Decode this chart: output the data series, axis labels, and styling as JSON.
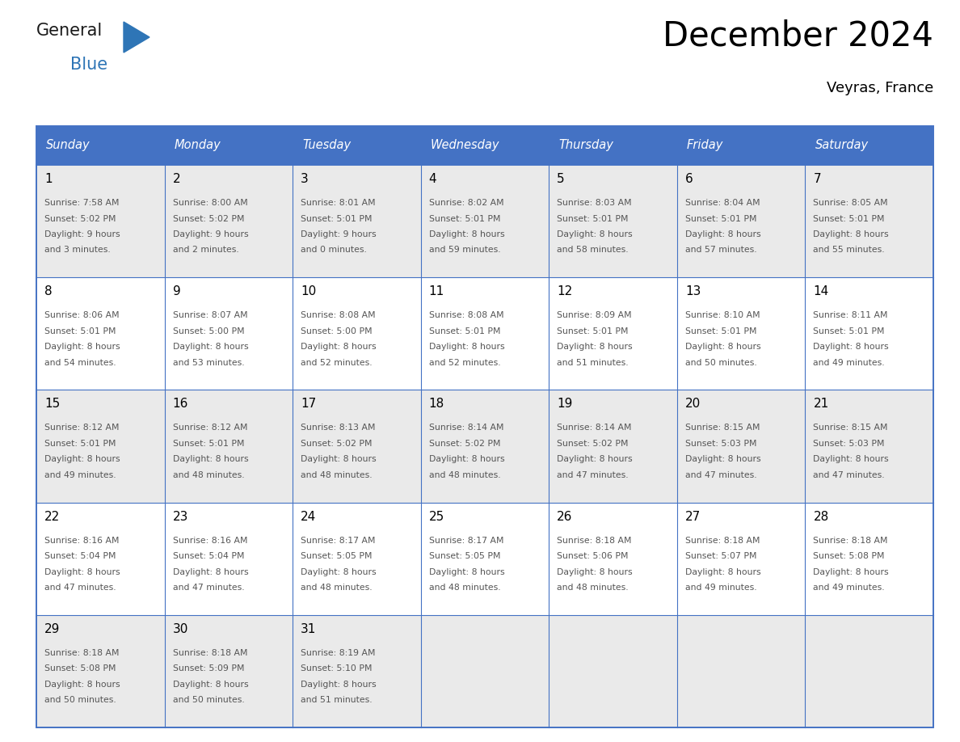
{
  "title": "December 2024",
  "subtitle": "Veyras, France",
  "header_color": "#4472C4",
  "header_text_color": "#FFFFFF",
  "day_names": [
    "Sunday",
    "Monday",
    "Tuesday",
    "Wednesday",
    "Thursday",
    "Friday",
    "Saturday"
  ],
  "cell_bg_even": "#EAEAEA",
  "cell_bg_odd": "#FFFFFF",
  "border_color": "#4472C4",
  "day_number_color": "#000000",
  "text_color": "#555555",
  "logo_general_color": "#1a1a1a",
  "logo_blue_color": "#2E75B6",
  "weeks": [
    {
      "days": [
        {
          "date": 1,
          "sunrise": "7:58 AM",
          "sunset": "5:02 PM",
          "daylight_line1": "Daylight: 9 hours",
          "daylight_line2": "and 3 minutes."
        },
        {
          "date": 2,
          "sunrise": "8:00 AM",
          "sunset": "5:02 PM",
          "daylight_line1": "Daylight: 9 hours",
          "daylight_line2": "and 2 minutes."
        },
        {
          "date": 3,
          "sunrise": "8:01 AM",
          "sunset": "5:01 PM",
          "daylight_line1": "Daylight: 9 hours",
          "daylight_line2": "and 0 minutes."
        },
        {
          "date": 4,
          "sunrise": "8:02 AM",
          "sunset": "5:01 PM",
          "daylight_line1": "Daylight: 8 hours",
          "daylight_line2": "and 59 minutes."
        },
        {
          "date": 5,
          "sunrise": "8:03 AM",
          "sunset": "5:01 PM",
          "daylight_line1": "Daylight: 8 hours",
          "daylight_line2": "and 58 minutes."
        },
        {
          "date": 6,
          "sunrise": "8:04 AM",
          "sunset": "5:01 PM",
          "daylight_line1": "Daylight: 8 hours",
          "daylight_line2": "and 57 minutes."
        },
        {
          "date": 7,
          "sunrise": "8:05 AM",
          "sunset": "5:01 PM",
          "daylight_line1": "Daylight: 8 hours",
          "daylight_line2": "and 55 minutes."
        }
      ]
    },
    {
      "days": [
        {
          "date": 8,
          "sunrise": "8:06 AM",
          "sunset": "5:01 PM",
          "daylight_line1": "Daylight: 8 hours",
          "daylight_line2": "and 54 minutes."
        },
        {
          "date": 9,
          "sunrise": "8:07 AM",
          "sunset": "5:00 PM",
          "daylight_line1": "Daylight: 8 hours",
          "daylight_line2": "and 53 minutes."
        },
        {
          "date": 10,
          "sunrise": "8:08 AM",
          "sunset": "5:00 PM",
          "daylight_line1": "Daylight: 8 hours",
          "daylight_line2": "and 52 minutes."
        },
        {
          "date": 11,
          "sunrise": "8:08 AM",
          "sunset": "5:01 PM",
          "daylight_line1": "Daylight: 8 hours",
          "daylight_line2": "and 52 minutes."
        },
        {
          "date": 12,
          "sunrise": "8:09 AM",
          "sunset": "5:01 PM",
          "daylight_line1": "Daylight: 8 hours",
          "daylight_line2": "and 51 minutes."
        },
        {
          "date": 13,
          "sunrise": "8:10 AM",
          "sunset": "5:01 PM",
          "daylight_line1": "Daylight: 8 hours",
          "daylight_line2": "and 50 minutes."
        },
        {
          "date": 14,
          "sunrise": "8:11 AM",
          "sunset": "5:01 PM",
          "daylight_line1": "Daylight: 8 hours",
          "daylight_line2": "and 49 minutes."
        }
      ]
    },
    {
      "days": [
        {
          "date": 15,
          "sunrise": "8:12 AM",
          "sunset": "5:01 PM",
          "daylight_line1": "Daylight: 8 hours",
          "daylight_line2": "and 49 minutes."
        },
        {
          "date": 16,
          "sunrise": "8:12 AM",
          "sunset": "5:01 PM",
          "daylight_line1": "Daylight: 8 hours",
          "daylight_line2": "and 48 minutes."
        },
        {
          "date": 17,
          "sunrise": "8:13 AM",
          "sunset": "5:02 PM",
          "daylight_line1": "Daylight: 8 hours",
          "daylight_line2": "and 48 minutes."
        },
        {
          "date": 18,
          "sunrise": "8:14 AM",
          "sunset": "5:02 PM",
          "daylight_line1": "Daylight: 8 hours",
          "daylight_line2": "and 48 minutes."
        },
        {
          "date": 19,
          "sunrise": "8:14 AM",
          "sunset": "5:02 PM",
          "daylight_line1": "Daylight: 8 hours",
          "daylight_line2": "and 47 minutes."
        },
        {
          "date": 20,
          "sunrise": "8:15 AM",
          "sunset": "5:03 PM",
          "daylight_line1": "Daylight: 8 hours",
          "daylight_line2": "and 47 minutes."
        },
        {
          "date": 21,
          "sunrise": "8:15 AM",
          "sunset": "5:03 PM",
          "daylight_line1": "Daylight: 8 hours",
          "daylight_line2": "and 47 minutes."
        }
      ]
    },
    {
      "days": [
        {
          "date": 22,
          "sunrise": "8:16 AM",
          "sunset": "5:04 PM",
          "daylight_line1": "Daylight: 8 hours",
          "daylight_line2": "and 47 minutes."
        },
        {
          "date": 23,
          "sunrise": "8:16 AM",
          "sunset": "5:04 PM",
          "daylight_line1": "Daylight: 8 hours",
          "daylight_line2": "and 47 minutes."
        },
        {
          "date": 24,
          "sunrise": "8:17 AM",
          "sunset": "5:05 PM",
          "daylight_line1": "Daylight: 8 hours",
          "daylight_line2": "and 48 minutes."
        },
        {
          "date": 25,
          "sunrise": "8:17 AM",
          "sunset": "5:05 PM",
          "daylight_line1": "Daylight: 8 hours",
          "daylight_line2": "and 48 minutes."
        },
        {
          "date": 26,
          "sunrise": "8:18 AM",
          "sunset": "5:06 PM",
          "daylight_line1": "Daylight: 8 hours",
          "daylight_line2": "and 48 minutes."
        },
        {
          "date": 27,
          "sunrise": "8:18 AM",
          "sunset": "5:07 PM",
          "daylight_line1": "Daylight: 8 hours",
          "daylight_line2": "and 49 minutes."
        },
        {
          "date": 28,
          "sunrise": "8:18 AM",
          "sunset": "5:08 PM",
          "daylight_line1": "Daylight: 8 hours",
          "daylight_line2": "and 49 minutes."
        }
      ]
    },
    {
      "days": [
        {
          "date": 29,
          "sunrise": "8:18 AM",
          "sunset": "5:08 PM",
          "daylight_line1": "Daylight: 8 hours",
          "daylight_line2": "and 50 minutes."
        },
        {
          "date": 30,
          "sunrise": "8:18 AM",
          "sunset": "5:09 PM",
          "daylight_line1": "Daylight: 8 hours",
          "daylight_line2": "and 50 minutes."
        },
        {
          "date": 31,
          "sunrise": "8:19 AM",
          "sunset": "5:10 PM",
          "daylight_line1": "Daylight: 8 hours",
          "daylight_line2": "and 51 minutes."
        }
      ]
    }
  ]
}
